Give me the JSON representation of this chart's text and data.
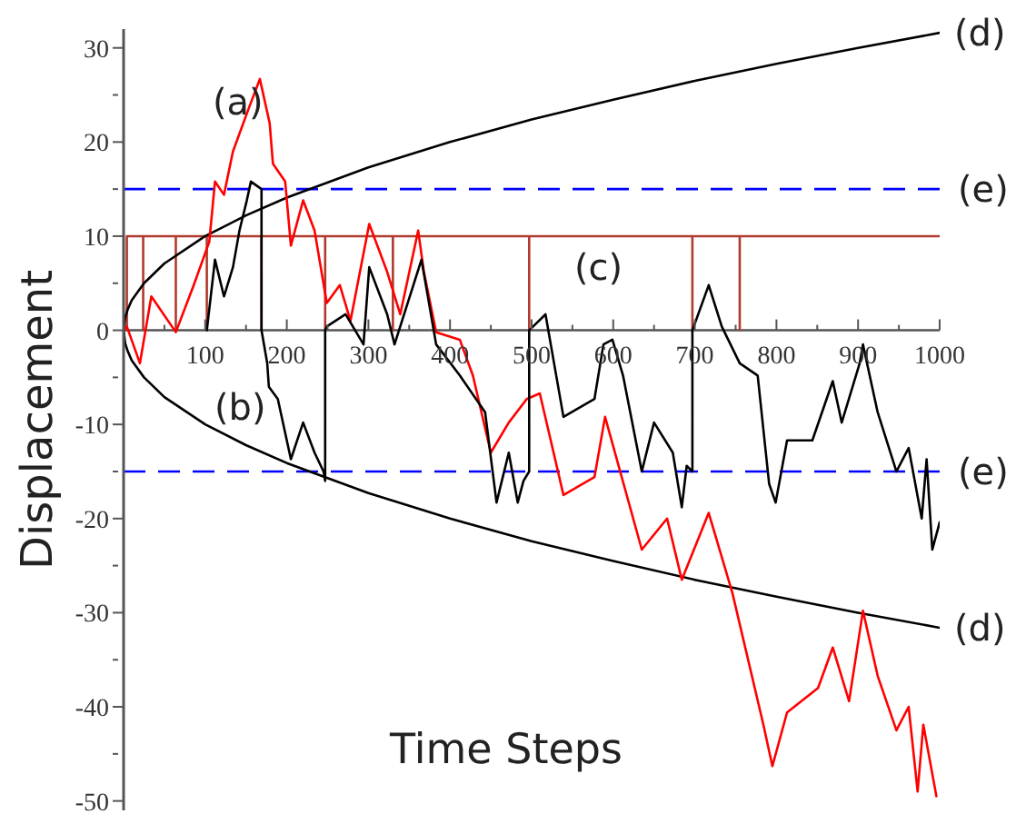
{
  "chart_data": {
    "type": "line",
    "xlabel": "Time Steps",
    "ylabel": "Displacement",
    "xlim": [
      0,
      1000
    ],
    "ylim": [
      -51,
      32
    ],
    "xticks": [
      {
        "value": 50,
        "label": null
      },
      100,
      {
        "value": 150,
        "label": null
      },
      200,
      {
        "value": 250,
        "label": null
      },
      300,
      {
        "value": 350,
        "label": null
      },
      400,
      {
        "value": 450,
        "label": null
      },
      500,
      {
        "value": 550,
        "label": null
      },
      600,
      {
        "value": 650,
        "label": null
      },
      700,
      {
        "value": 750,
        "label": null
      },
      800,
      {
        "value": 850,
        "label": null
      },
      900,
      {
        "value": 950,
        "label": null
      },
      1000
    ],
    "yticks": [
      -50,
      {
        "value": -45,
        "label": null
      },
      -40,
      {
        "value": -35,
        "label": null
      },
      -30,
      {
        "value": -25,
        "label": null
      },
      -20,
      {
        "value": -15,
        "label": null
      },
      -10,
      {
        "value": -5,
        "label": null
      },
      0,
      {
        "value": 5,
        "label": null
      },
      10,
      {
        "value": 15,
        "label": null
      },
      20,
      {
        "value": 25,
        "label": null
      },
      30
    ],
    "grid": false,
    "legend": false,
    "marker": "none",
    "line_style": "solid",
    "series": [
      {
        "color": "#b03a2e",
        "x": [
          4,
          4,
          24,
          24,
          24,
          64,
          64,
          64,
          102,
          102,
          102,
          169,
          169,
          169,
          247,
          247,
          247,
          330,
          330,
          330,
          497,
          497,
          497,
          697,
          697,
          697,
          755,
          755,
          755,
          1000
        ],
        "values": [
          0,
          10,
          10,
          0,
          10,
          10,
          0,
          10,
          10,
          0,
          10,
          10,
          0,
          10,
          10,
          0,
          10,
          10,
          0,
          10,
          10,
          0,
          10,
          10,
          0,
          10,
          10,
          0,
          10,
          10
        ]
      },
      {
        "name": "(d)",
        "color": "#000000",
        "x": [
          1000,
          900,
          800,
          700,
          600,
          500,
          400,
          300,
          200,
          150,
          100,
          50,
          25,
          10,
          5,
          2,
          0,
          2,
          5,
          10,
          25,
          50,
          100,
          150,
          200,
          300,
          400,
          500,
          600,
          700,
          800,
          900,
          1000
        ],
        "values": [
          31.6,
          30,
          28.3,
          26.5,
          24.5,
          22.4,
          20,
          17.3,
          14.1,
          12.2,
          10,
          7.1,
          5,
          3.2,
          2.2,
          1.4,
          0,
          -1.4,
          -2.2,
          -3.2,
          -5,
          -7.1,
          -10,
          -12.2,
          -14.1,
          -17.3,
          -20,
          -22.4,
          -24.5,
          -26.5,
          -28.3,
          -30,
          -31.6
        ]
      },
      {
        "color": "#ff0000",
        "x": [
          0,
          4,
          20,
          34,
          64,
          86,
          105,
          112,
          123,
          134,
          153,
          167,
          179,
          183,
          198,
          205,
          220,
          234,
          249,
          265,
          278,
          301,
          323,
          339,
          361,
          368,
          383,
          412,
          428,
          450,
          472,
          494,
          510,
          539,
          577,
          590,
          635,
          666,
          684,
          717,
          746,
          784,
          795,
          813,
          851,
          869,
          889,
          906,
          924,
          947,
          962,
          973,
          980,
          996
        ],
        "values": [
          0,
          0.4,
          -3.5,
          3.6,
          -0.2,
          4.8,
          9.4,
          15.8,
          14.4,
          19,
          23.5,
          26.7,
          22,
          17.7,
          15.8,
          9,
          13.8,
          10.6,
          2.9,
          4.8,
          1,
          11.3,
          6.2,
          1.7,
          10.6,
          6.2,
          -0.2,
          -1,
          -4.8,
          -13,
          -9.8,
          -7.3,
          -6.7,
          -17.5,
          -15.6,
          -9.2,
          -23.3,
          -20,
          -26.5,
          -19.4,
          -27.9,
          -41.9,
          -46.3,
          -40.6,
          -38,
          -33.7,
          -39.4,
          -29.8,
          -36.7,
          -42.5,
          -40,
          -49,
          -41.9,
          -49.5
        ]
      },
      {
        "color": "#000000",
        "x": [
          102,
          112,
          123,
          134,
          142,
          151,
          156,
          169,
          169,
          176,
          178,
          189,
          205,
          220,
          234,
          245,
          247,
          247,
          249,
          272,
          294,
          301,
          323,
          332,
          365,
          383,
          412,
          443,
          457,
          472,
          483,
          490,
          497,
          497,
          517,
          539,
          577,
          588,
          599,
          612,
          635,
          650,
          673,
          684,
          690,
          697,
          697,
          717,
          733,
          755,
          777,
          791,
          799,
          813,
          844,
          869,
          880,
          902,
          906,
          924,
          947,
          962,
          978,
          984,
          991,
          1000
        ],
        "values": [
          0,
          7.5,
          3.6,
          6.7,
          10.6,
          13.8,
          15.8,
          15,
          0,
          -3.5,
          -6,
          -7.3,
          -13.7,
          -9.8,
          -13,
          -15,
          -16,
          0,
          0.4,
          1.7,
          -1.5,
          6.7,
          1.7,
          -1.5,
          7.5,
          -1.5,
          -4.8,
          -8.7,
          -18.3,
          -13,
          -18.3,
          -16,
          -15,
          0,
          1.7,
          -9.2,
          -7.3,
          -1.5,
          -1,
          -4.8,
          -15,
          -9.8,
          -13,
          -18.8,
          -14.4,
          -15,
          0,
          4.8,
          0.4,
          -3.5,
          -4.8,
          -16.3,
          -18.3,
          -11.7,
          -11.7,
          -5.4,
          -9.8,
          -3.5,
          -1.5,
          -8.7,
          -15,
          -12.5,
          -20,
          -13.7,
          -23.3,
          -20.4
        ]
      }
    ],
    "ref_lines": [
      {
        "axis": "y",
        "value": 15,
        "label": "(e)",
        "color": "#0000ff",
        "line_style": "dashed"
      },
      {
        "axis": "y",
        "value": -15,
        "label": "(e)",
        "color": "#0000ff",
        "line_style": "dashed"
      }
    ],
    "annotations": [
      "(a)",
      "(b)",
      "(c)"
    ]
  }
}
